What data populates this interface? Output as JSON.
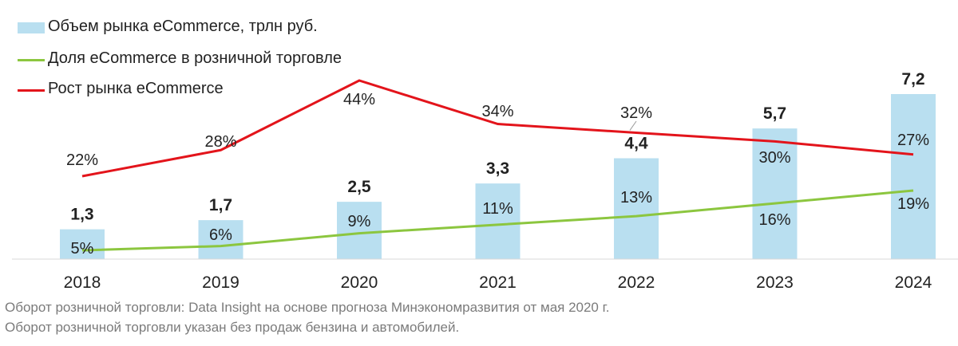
{
  "chart_data": {
    "type": "bar",
    "categories": [
      "2018",
      "2019",
      "2020",
      "2021",
      "2022",
      "2023",
      "2024"
    ],
    "series": [
      {
        "name": "Объем рынка eCommerce, трлн руб.",
        "type": "bar",
        "values": [
          1.3,
          1.7,
          2.5,
          3.3,
          4.4,
          5.7,
          7.2
        ],
        "labels": [
          "1,3",
          "1,7",
          "2,5",
          "3,3",
          "4,4",
          "5,7",
          "7,2"
        ],
        "color": "#b9dff0"
      },
      {
        "name": "Доля eCommerce в розничной торговле",
        "type": "line",
        "values": [
          5,
          6,
          9,
          11,
          13,
          16,
          19
        ],
        "labels": [
          "5%",
          "6%",
          "9%",
          "11%",
          "13%",
          "16%",
          "19%"
        ],
        "color": "#8cc63f"
      },
      {
        "name": "Рост рынка eCommerce",
        "type": "line",
        "values": [
          22,
          28,
          44,
          34,
          32,
          30,
          27
        ],
        "labels": [
          "22%",
          "28%",
          "44%",
          "34%",
          "32%",
          "30%",
          "27%"
        ],
        "color": "#e3141b"
      }
    ],
    "ylim_bars": [
      0,
      7.2
    ],
    "ylim_growth": [
      22,
      44
    ],
    "legend_position": "top-left",
    "grid": false
  },
  "footnotes": [
    "Оборот розничной торговли: Data Insight на основе прогноза Минэкономразвития от мая 2020 г.",
    "Оборот розничной торговли указан без продаж бензина и автомобилей."
  ]
}
